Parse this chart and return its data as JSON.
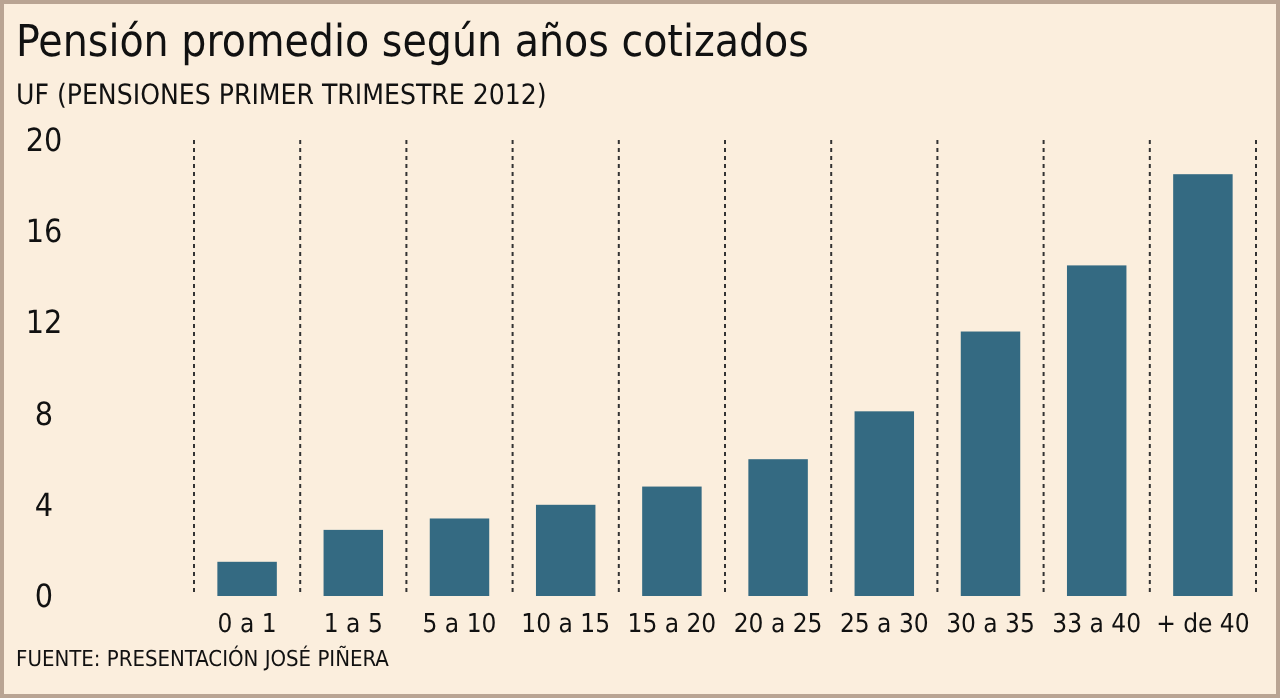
{
  "chart_data": {
    "type": "bar",
    "title": "Pensión promedio según años cotizados",
    "subtitle": "UF (PENSIONES PRIMER TRIMESTRE 2012)",
    "categories": [
      "0 a 1",
      "1 a 5",
      "5 a 10",
      "10 a 15",
      "15 a 20",
      "20 a 25",
      "25 a 30",
      "30 a 35",
      "33 a 40",
      "+ de 40"
    ],
    "values": [
      1.5,
      2.9,
      3.4,
      4.0,
      4.8,
      6.0,
      8.1,
      11.6,
      14.5,
      18.5
    ],
    "color": "#346a82",
    "ylim": [
      0,
      20
    ],
    "yticks": [
      0,
      4,
      8,
      12,
      16,
      20
    ],
    "grid": "x",
    "annotations": [
      "FUENTE: PRESENTACIÓN JOSÉ PIÑERA"
    ]
  }
}
